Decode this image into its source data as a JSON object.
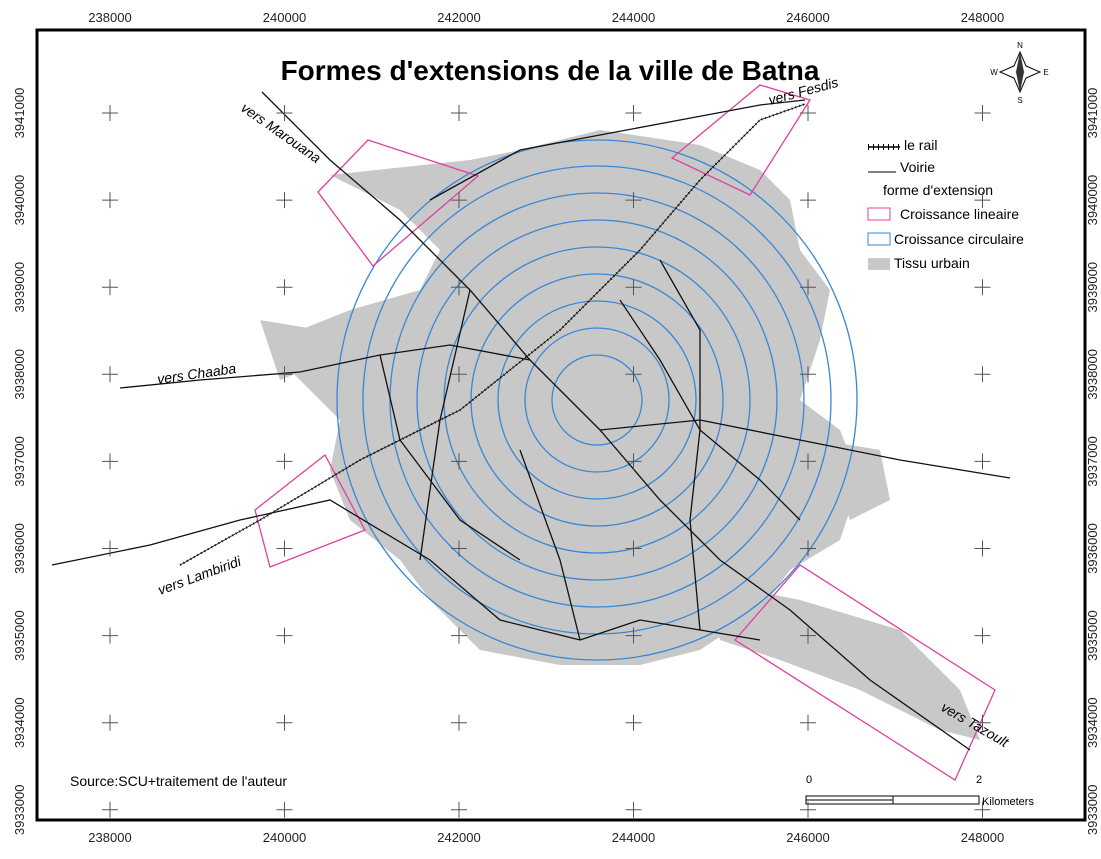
{
  "map": {
    "title": "Formes d'extensions de la ville de Batna",
    "source": "Source:SCU+traitement de l'auteur",
    "x_labels": [
      238000,
      240000,
      242000,
      244000,
      246000,
      248000
    ],
    "y_labels": [
      3941000,
      3940000,
      3939000,
      3938000,
      3937000,
      3936000,
      3935000,
      3934000,
      3933000
    ],
    "legend": {
      "rail": "le rail",
      "road": "Voirie",
      "group": "forme d'extension",
      "linear": "Croissance lineaire",
      "circular": "Croissance circulaire",
      "urban": "Tissu urbain"
    },
    "places": {
      "marouana": "vers Marouana",
      "fesdis": "vers Fesdis",
      "chaaba": "vers Chaaba",
      "lambiridi": "vers Lambiridi",
      "tazoult": "vers Tazoult"
    },
    "scale": {
      "start": "0",
      "end": "2",
      "unit": "Kilometers"
    },
    "compass": {
      "n": "N",
      "e": "E",
      "s": "S",
      "w": "W"
    }
  }
}
